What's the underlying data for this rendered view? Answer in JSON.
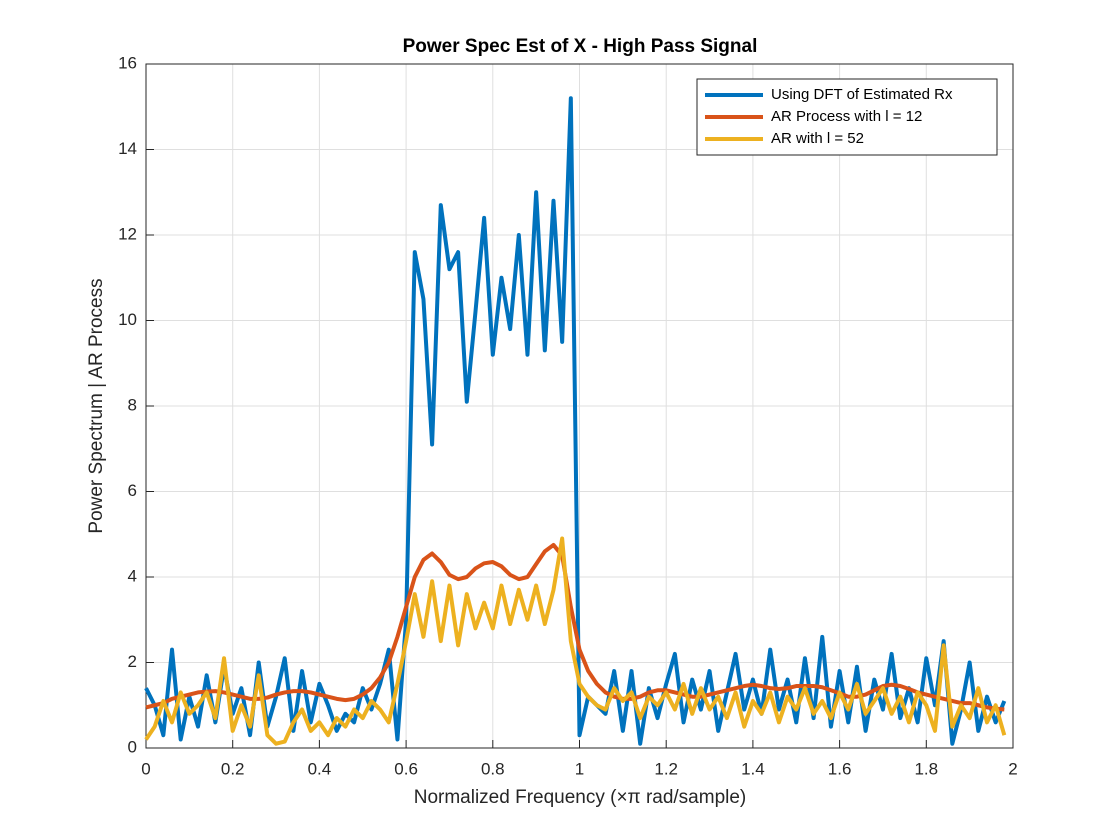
{
  "chart_data": {
    "type": "line",
    "title": "Power Spec Est of X -  High Pass Signal",
    "x_label": "Normalized Frequency (×π rad/sample)",
    "y_label": "Power Spectrum | AR Process",
    "x": [
      0,
      0.02,
      0.04,
      0.06,
      0.08,
      0.1,
      0.12,
      0.14,
      0.16,
      0.18,
      0.2,
      0.22,
      0.24,
      0.26,
      0.28,
      0.3,
      0.32,
      0.34,
      0.36,
      0.38,
      0.4,
      0.42,
      0.44,
      0.46,
      0.48,
      0.5,
      0.52,
      0.54,
      0.56,
      0.58,
      0.6,
      0.62,
      0.64,
      0.66,
      0.68,
      0.7,
      0.72,
      0.74,
      0.76,
      0.78,
      0.8,
      0.82,
      0.84,
      0.86,
      0.88,
      0.9,
      0.92,
      0.94,
      0.96,
      0.98,
      1,
      1.02,
      1.04,
      1.06,
      1.08,
      1.1,
      1.12,
      1.14,
      1.16,
      1.18,
      1.2,
      1.22,
      1.24,
      1.26,
      1.28,
      1.3,
      1.32,
      1.34,
      1.36,
      1.38,
      1.4,
      1.42,
      1.44,
      1.46,
      1.48,
      1.5,
      1.52,
      1.54,
      1.56,
      1.58,
      1.6,
      1.62,
      1.64,
      1.66,
      1.68,
      1.7,
      1.72,
      1.74,
      1.76,
      1.78,
      1.8,
      1.82,
      1.84,
      1.86,
      1.88,
      1.9,
      1.92,
      1.94,
      1.96,
      1.98
    ],
    "series": [
      {
        "name": "Using DFT of Estimated Rx",
        "color": "#0072bd",
        "values": [
          1.4,
          1.0,
          0.3,
          2.3,
          0.2,
          1.2,
          0.5,
          1.7,
          0.6,
          1.9,
          0.8,
          1.4,
          0.3,
          2.0,
          0.5,
          1.2,
          2.1,
          0.4,
          1.8,
          0.6,
          1.5,
          1.0,
          0.4,
          0.8,
          0.6,
          1.4,
          0.9,
          1.5,
          2.3,
          0.2,
          3.0,
          11.6,
          10.5,
          7.1,
          12.7,
          11.2,
          11.6,
          8.1,
          10.2,
          12.4,
          9.2,
          11.0,
          9.8,
          12.0,
          9.2,
          13.0,
          9.3,
          12.8,
          9.5,
          15.2,
          0.3,
          1.2,
          1.0,
          0.8,
          1.8,
          0.4,
          1.8,
          0.1,
          1.4,
          0.7,
          1.5,
          2.2,
          0.6,
          1.6,
          0.9,
          1.8,
          0.4,
          1.3,
          2.2,
          0.9,
          1.6,
          0.8,
          2.3,
          0.9,
          1.6,
          0.6,
          2.1,
          0.7,
          2.6,
          0.5,
          1.8,
          0.6,
          1.9,
          0.4,
          1.6,
          0.9,
          2.2,
          0.7,
          1.4,
          0.6,
          2.1,
          1.0,
          2.5,
          0.1,
          0.9,
          2.0,
          0.4,
          1.2,
          0.6,
          1.1
        ]
      },
      {
        "name": "AR Process with l = 12",
        "color": "#d95319",
        "values": [
          0.95,
          1.0,
          1.05,
          1.15,
          1.2,
          1.25,
          1.3,
          1.32,
          1.33,
          1.3,
          1.25,
          1.2,
          1.15,
          1.15,
          1.18,
          1.25,
          1.3,
          1.33,
          1.33,
          1.3,
          1.25,
          1.2,
          1.15,
          1.12,
          1.15,
          1.25,
          1.4,
          1.65,
          2.0,
          2.6,
          3.3,
          4.0,
          4.4,
          4.55,
          4.35,
          4.05,
          3.95,
          4.0,
          4.2,
          4.32,
          4.35,
          4.25,
          4.05,
          3.95,
          4.0,
          4.3,
          4.6,
          4.75,
          4.5,
          3.3,
          2.3,
          1.8,
          1.5,
          1.3,
          1.2,
          1.15,
          1.15,
          1.2,
          1.3,
          1.35,
          1.35,
          1.3,
          1.25,
          1.2,
          1.2,
          1.25,
          1.3,
          1.35,
          1.4,
          1.45,
          1.48,
          1.45,
          1.4,
          1.38,
          1.4,
          1.45,
          1.45,
          1.45,
          1.42,
          1.35,
          1.28,
          1.2,
          1.2,
          1.25,
          1.35,
          1.45,
          1.48,
          1.45,
          1.38,
          1.3,
          1.25,
          1.2,
          1.15,
          1.1,
          1.05,
          1.05,
          1.0,
          0.95,
          0.92,
          0.9
        ]
      },
      {
        "name": "AR with l = 52",
        "color": "#edb120",
        "values": [
          0.2,
          0.5,
          1.1,
          0.6,
          1.3,
          0.8,
          1.0,
          1.3,
          0.7,
          2.1,
          0.4,
          1.0,
          0.5,
          1.7,
          0.3,
          0.1,
          0.15,
          0.6,
          0.9,
          0.4,
          0.6,
          0.3,
          0.7,
          0.5,
          0.9,
          0.7,
          1.1,
          0.9,
          0.6,
          1.5,
          2.5,
          3.6,
          2.6,
          3.9,
          2.5,
          3.8,
          2.4,
          3.6,
          2.8,
          3.4,
          2.8,
          3.8,
          2.9,
          3.7,
          3.0,
          3.8,
          2.9,
          3.7,
          4.9,
          2.5,
          1.5,
          1.2,
          1.0,
          0.9,
          1.4,
          1.1,
          1.3,
          0.7,
          1.2,
          1.0,
          1.3,
          0.9,
          1.5,
          0.8,
          1.4,
          0.9,
          1.2,
          0.7,
          1.3,
          0.5,
          1.1,
          0.8,
          1.3,
          0.6,
          1.2,
          0.9,
          1.4,
          0.8,
          1.1,
          0.7,
          1.3,
          0.9,
          1.5,
          0.8,
          1.1,
          1.4,
          0.8,
          1.2,
          0.6,
          1.3,
          1.0,
          0.4,
          2.4,
          0.5,
          1.0,
          0.7,
          1.4,
          0.6,
          1.0,
          0.3
        ]
      }
    ],
    "xlim": [
      0,
      2
    ],
    "xticks": [
      0,
      0.2,
      0.4,
      0.6,
      0.8,
      1,
      1.2,
      1.4,
      1.6,
      1.8,
      2
    ],
    "ylim": [
      0,
      16
    ],
    "yticks": [
      0,
      2,
      4,
      6,
      8,
      10,
      12,
      14,
      16
    ],
    "grid": true,
    "legend": "northeast"
  }
}
